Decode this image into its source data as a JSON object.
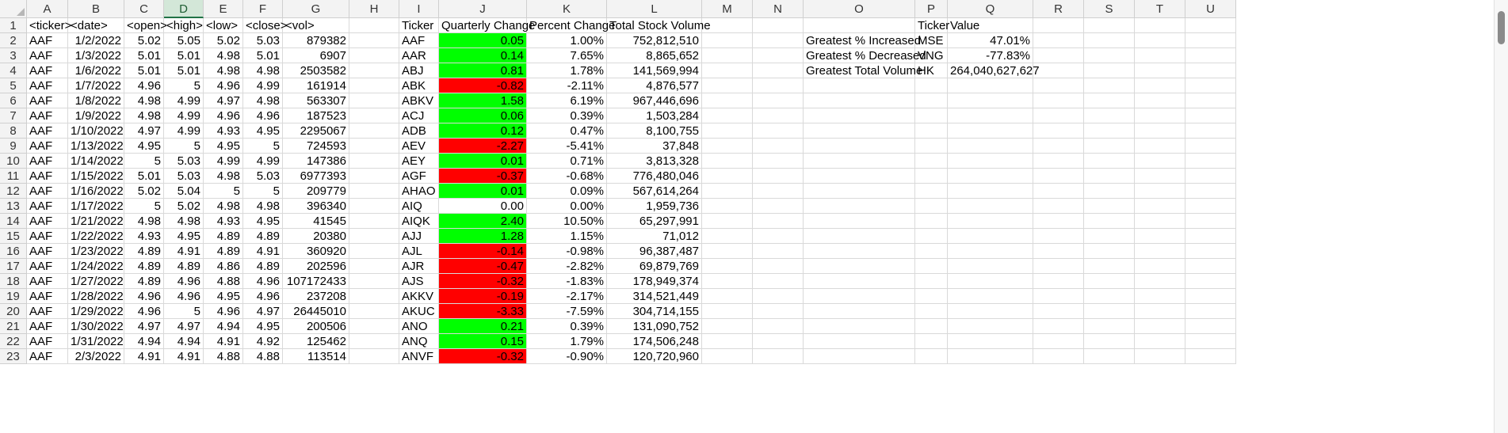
{
  "columns": [
    "A",
    "B",
    "C",
    "D",
    "E",
    "F",
    "G",
    "H",
    "I",
    "J",
    "K",
    "L",
    "M",
    "N",
    "O",
    "P",
    "Q",
    "R",
    "S",
    "T",
    "U"
  ],
  "selected_column": "D",
  "row_numbers": [
    "1",
    "2",
    "3",
    "4",
    "5",
    "6",
    "7",
    "8",
    "9",
    "10",
    "11",
    "12",
    "13",
    "14",
    "15",
    "16",
    "17",
    "18",
    "19",
    "20",
    "21",
    "22",
    "23"
  ],
  "raw_headers": [
    "<ticker>",
    "<date>",
    "<open>",
    "<high>",
    "<low>",
    "<close>",
    "<vol>"
  ],
  "raw_rows": [
    [
      "AAF",
      "1/2/2022",
      "5.02",
      "5.05",
      "5.02",
      "5.03",
      "879382"
    ],
    [
      "AAF",
      "1/3/2022",
      "5.01",
      "5.01",
      "4.98",
      "5.01",
      "6907"
    ],
    [
      "AAF",
      "1/6/2022",
      "5.01",
      "5.01",
      "4.98",
      "4.98",
      "2503582"
    ],
    [
      "AAF",
      "1/7/2022",
      "4.96",
      "5",
      "4.96",
      "4.99",
      "161914"
    ],
    [
      "AAF",
      "1/8/2022",
      "4.98",
      "4.99",
      "4.97",
      "4.98",
      "563307"
    ],
    [
      "AAF",
      "1/9/2022",
      "4.98",
      "4.99",
      "4.96",
      "4.96",
      "187523"
    ],
    [
      "AAF",
      "1/10/2022",
      "4.97",
      "4.99",
      "4.93",
      "4.95",
      "2295067"
    ],
    [
      "AAF",
      "1/13/2022",
      "4.95",
      "5",
      "4.95",
      "5",
      "724593"
    ],
    [
      "AAF",
      "1/14/2022",
      "5",
      "5.03",
      "4.99",
      "4.99",
      "147386"
    ],
    [
      "AAF",
      "1/15/2022",
      "5.01",
      "5.03",
      "4.98",
      "5.03",
      "6977393"
    ],
    [
      "AAF",
      "1/16/2022",
      "5.02",
      "5.04",
      "5",
      "5",
      "209779"
    ],
    [
      "AAF",
      "1/17/2022",
      "5",
      "5.02",
      "4.98",
      "4.98",
      "396340"
    ],
    [
      "AAF",
      "1/21/2022",
      "4.98",
      "4.98",
      "4.93",
      "4.95",
      "41545"
    ],
    [
      "AAF",
      "1/22/2022",
      "4.93",
      "4.95",
      "4.89",
      "4.89",
      "20380"
    ],
    [
      "AAF",
      "1/23/2022",
      "4.89",
      "4.91",
      "4.89",
      "4.91",
      "360920"
    ],
    [
      "AAF",
      "1/24/2022",
      "4.89",
      "4.89",
      "4.86",
      "4.89",
      "202596"
    ],
    [
      "AAF",
      "1/27/2022",
      "4.89",
      "4.96",
      "4.88",
      "4.96",
      "107172433"
    ],
    [
      "AAF",
      "1/28/2022",
      "4.96",
      "4.96",
      "4.95",
      "4.96",
      "237208"
    ],
    [
      "AAF",
      "1/29/2022",
      "4.96",
      "5",
      "4.96",
      "4.97",
      "26445010"
    ],
    [
      "AAF",
      "1/30/2022",
      "4.97",
      "4.97",
      "4.94",
      "4.95",
      "200506"
    ],
    [
      "AAF",
      "1/31/2022",
      "4.94",
      "4.94",
      "4.91",
      "4.92",
      "125462"
    ],
    [
      "AAF",
      "2/3/2022",
      "4.91",
      "4.91",
      "4.88",
      "4.88",
      "113514"
    ]
  ],
  "summary_headers": [
    "Ticker",
    "Quarterly Change",
    "Percent Change",
    "Total Stock Volume"
  ],
  "summary_rows": [
    [
      "AAF",
      "0.05",
      "1.00%",
      "752,812,510",
      "green"
    ],
    [
      "AAR",
      "0.14",
      "7.65%",
      "8,865,652",
      "green"
    ],
    [
      "ABJ",
      "0.81",
      "1.78%",
      "141,569,994",
      "green"
    ],
    [
      "ABK",
      "-0.82",
      "-2.11%",
      "4,876,577",
      "red"
    ],
    [
      "ABKV",
      "1.58",
      "6.19%",
      "967,446,696",
      "green"
    ],
    [
      "ACJ",
      "0.06",
      "0.39%",
      "1,503,284",
      "green"
    ],
    [
      "ADB",
      "0.12",
      "0.47%",
      "8,100,755",
      "green"
    ],
    [
      "AEV",
      "-2.27",
      "-5.41%",
      "37,848",
      "red"
    ],
    [
      "AEY",
      "0.01",
      "0.71%",
      "3,813,328",
      "green"
    ],
    [
      "AGF",
      "-0.37",
      "-0.68%",
      "776,480,046",
      "red"
    ],
    [
      "AHAO",
      "0.01",
      "0.09%",
      "567,614,264",
      "green"
    ],
    [
      "AIQ",
      "0.00",
      "0.00%",
      "1,959,736",
      "none"
    ],
    [
      "AIQK",
      "2.40",
      "10.50%",
      "65,297,991",
      "green"
    ],
    [
      "AJJ",
      "1.28",
      "1.15%",
      "71,012",
      "green"
    ],
    [
      "AJL",
      "-0.14",
      "-0.98%",
      "96,387,487",
      "red"
    ],
    [
      "AJR",
      "-0.47",
      "-2.82%",
      "69,879,769",
      "red"
    ],
    [
      "AJS",
      "-0.32",
      "-1.83%",
      "178,949,374",
      "red"
    ],
    [
      "AKKV",
      "-0.19",
      "-2.17%",
      "314,521,449",
      "red"
    ],
    [
      "AKUC",
      "-3.33",
      "-7.59%",
      "304,714,155",
      "red"
    ],
    [
      "ANO",
      "0.21",
      "0.39%",
      "131,090,752",
      "green"
    ],
    [
      "ANQ",
      "0.15",
      "1.79%",
      "174,506,248",
      "green"
    ],
    [
      "ANVF",
      "-0.32",
      "-0.90%",
      "120,720,960",
      "red"
    ]
  ],
  "greatest_headers": [
    "Ticker",
    "Value"
  ],
  "greatest_rows": [
    [
      "Greatest % Increased",
      "MSE",
      "47.01%"
    ],
    [
      "Greatest % Decreased",
      "VNG",
      "-77.83%"
    ],
    [
      "Greatest Total Volume",
      "HK",
      "264,040,627,627"
    ]
  ],
  "colors": {
    "positive": "#00ff00",
    "negative": "#ff0000",
    "selected_header": "#d3e7d8"
  }
}
